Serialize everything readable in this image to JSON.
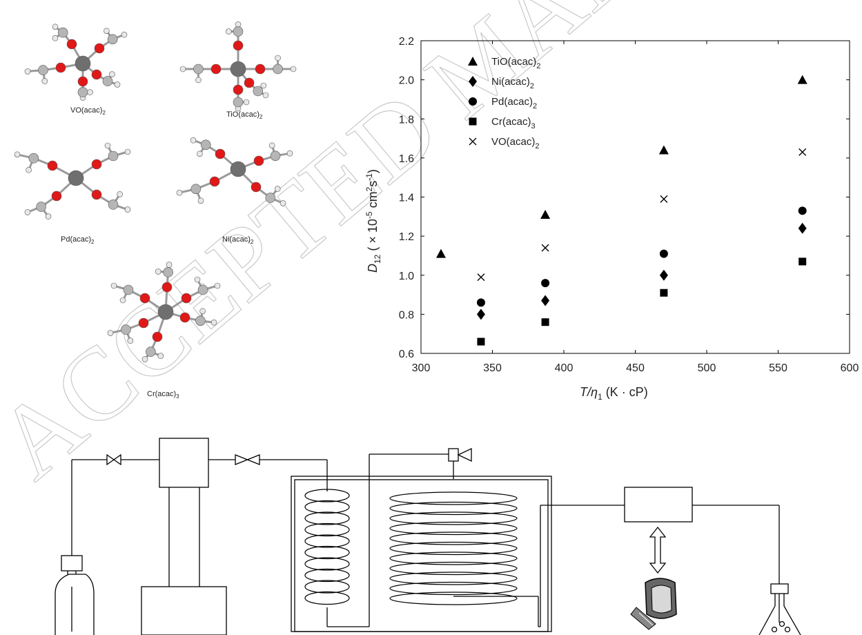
{
  "watermark": "ACCEPTED MANUSCRIPT",
  "molecules": [
    {
      "name": "VO(acac)2",
      "base": "VO(acac)",
      "sub": "2"
    },
    {
      "name": "TiO(acac)2",
      "base": "TiO(acac)",
      "sub": "2"
    },
    {
      "name": "Pd(acac)2",
      "base": "Pd(acac)",
      "sub": "2"
    },
    {
      "name": "Ni(acac)2",
      "base": "Ni(acac)",
      "sub": "2"
    },
    {
      "name": "Cr(acac)3",
      "base": "Cr(acac)",
      "sub": "3"
    }
  ],
  "colors": {
    "oxygen": "#e01818",
    "metal": "#6f6f6f",
    "carbon": "#b5b5b5",
    "hydrogen": "#e8e8e8",
    "ink": "#000000",
    "watermark": "#c8c8c8"
  },
  "chart_data": {
    "type": "scatter",
    "xlabel": {
      "italic": "T/η",
      "sub": "1",
      "rest": " (K · cP)"
    },
    "ylabel": {
      "italic": "D",
      "sub": "12",
      "pre": " ( × 10",
      "sup1": "-5",
      "mid": " cm",
      "sup2": "2",
      "mid2": "s",
      "sup3": "-1",
      "end": ")"
    },
    "xlim": [
      300,
      600
    ],
    "ylim": [
      0.6,
      2.2
    ],
    "xticks": [
      "300",
      "350",
      "400",
      "450",
      "500",
      "550",
      "600"
    ],
    "yticks": [
      "0.6",
      "0.8",
      "1.0",
      "1.2",
      "1.4",
      "1.6",
      "1.8",
      "2.0",
      "2.2"
    ],
    "legend_position": "top-left",
    "series": [
      {
        "name": "TiO(acac)2",
        "label_base": "TiO(acac)",
        "label_sub": "2",
        "marker": "triangle",
        "points": [
          [
            314,
            1.11
          ],
          [
            387,
            1.31
          ],
          [
            470,
            1.64
          ],
          [
            567,
            2.0
          ]
        ]
      },
      {
        "name": "Ni(acac)2",
        "label_base": "Ni(acac)",
        "label_sub": "2",
        "marker": "diamond",
        "points": [
          [
            342,
            0.8
          ],
          [
            387,
            0.87
          ],
          [
            470,
            1.0
          ],
          [
            567,
            1.24
          ]
        ]
      },
      {
        "name": "Pd(acac)2",
        "label_base": "Pd(acac)",
        "label_sub": "2",
        "marker": "circle",
        "points": [
          [
            342,
            0.86
          ],
          [
            387,
            0.96
          ],
          [
            470,
            1.11
          ],
          [
            567,
            1.33
          ]
        ]
      },
      {
        "name": "Cr(acac)3",
        "label_base": "Cr(acac)",
        "label_sub": "3",
        "marker": "square",
        "points": [
          [
            342,
            0.66
          ],
          [
            387,
            0.76
          ],
          [
            470,
            0.91
          ],
          [
            567,
            1.07
          ]
        ]
      },
      {
        "name": "VO(acac)2",
        "label_base": "VO(acac)",
        "label_sub": "2",
        "marker": "x",
        "points": [
          [
            342,
            0.99
          ],
          [
            387,
            1.14
          ],
          [
            470,
            1.39
          ],
          [
            567,
            1.63
          ]
        ]
      }
    ]
  }
}
